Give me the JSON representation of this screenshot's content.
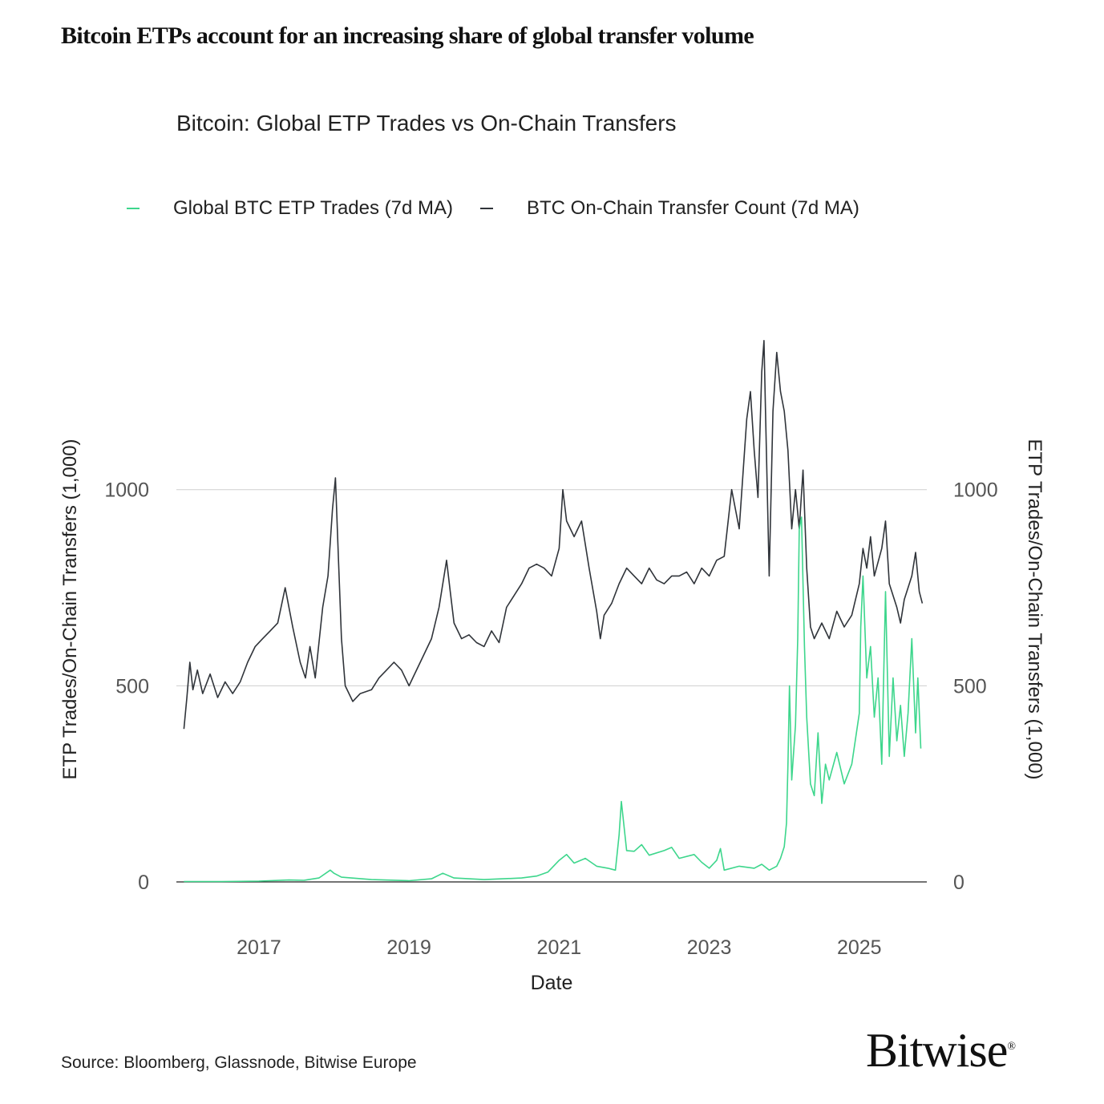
{
  "headline": "Bitcoin ETPs account for an increasing share of global transfer volume",
  "source": "Source: Bloomberg, Glassnode, Bitwise Europe",
  "logo": {
    "text": "Bitwise",
    "mark": "®"
  },
  "colors": {
    "etp": "#3dd68c",
    "onchain": "#30343a",
    "grid": "#cfcfcf",
    "axis": "#222222"
  },
  "chart_data": {
    "type": "line",
    "title": "Bitcoin: Global ETP Trades vs On-Chain Transfers",
    "xlabel": "Date",
    "ylabel_left": "ETP Trades/On-Chain Transfers (1,000)",
    "ylabel_right": "ETP Trades/On-Chain Transfers (1,000)",
    "ylim": [
      0,
      1400
    ],
    "xlim": [
      2015.9,
      2025.9
    ],
    "yticks": [
      0,
      500,
      1000
    ],
    "xticks": [
      2017,
      2019,
      2021,
      2023,
      2025
    ],
    "xtick_labels": [
      "2017",
      "2019",
      "2021",
      "2023",
      "2025"
    ],
    "grid": "horizontal",
    "legend_position": "top",
    "series": [
      {
        "name": "Global BTC ETP Trades (7d MA)",
        "color": "#3dd68c",
        "points": [
          [
            2016.0,
            1
          ],
          [
            2016.5,
            1
          ],
          [
            2017.0,
            2
          ],
          [
            2017.4,
            5
          ],
          [
            2017.6,
            4
          ],
          [
            2017.8,
            10
          ],
          [
            2017.95,
            30
          ],
          [
            2018.0,
            22
          ],
          [
            2018.1,
            12
          ],
          [
            2018.5,
            6
          ],
          [
            2019.0,
            3
          ],
          [
            2019.3,
            8
          ],
          [
            2019.45,
            22
          ],
          [
            2019.6,
            10
          ],
          [
            2020.0,
            6
          ],
          [
            2020.5,
            10
          ],
          [
            2020.7,
            15
          ],
          [
            2020.85,
            25
          ],
          [
            2021.0,
            55
          ],
          [
            2021.1,
            70
          ],
          [
            2021.2,
            48
          ],
          [
            2021.35,
            60
          ],
          [
            2021.5,
            40
          ],
          [
            2021.65,
            35
          ],
          [
            2021.75,
            30
          ],
          [
            2021.8,
            120
          ],
          [
            2021.83,
            205
          ],
          [
            2021.9,
            80
          ],
          [
            2022.0,
            78
          ],
          [
            2022.1,
            95
          ],
          [
            2022.2,
            68
          ],
          [
            2022.4,
            80
          ],
          [
            2022.5,
            88
          ],
          [
            2022.6,
            60
          ],
          [
            2022.8,
            70
          ],
          [
            2022.9,
            50
          ],
          [
            2023.0,
            35
          ],
          [
            2023.1,
            55
          ],
          [
            2023.15,
            85
          ],
          [
            2023.2,
            30
          ],
          [
            2023.4,
            40
          ],
          [
            2023.6,
            35
          ],
          [
            2023.7,
            45
          ],
          [
            2023.8,
            30
          ],
          [
            2023.9,
            40
          ],
          [
            2023.95,
            60
          ],
          [
            2024.0,
            90
          ],
          [
            2024.03,
            150
          ],
          [
            2024.05,
            300
          ],
          [
            2024.07,
            500
          ],
          [
            2024.1,
            260
          ],
          [
            2024.15,
            400
          ],
          [
            2024.18,
            620
          ],
          [
            2024.2,
            900
          ],
          [
            2024.23,
            930
          ],
          [
            2024.27,
            600
          ],
          [
            2024.3,
            420
          ],
          [
            2024.35,
            250
          ],
          [
            2024.4,
            220
          ],
          [
            2024.45,
            380
          ],
          [
            2024.5,
            200
          ],
          [
            2024.55,
            300
          ],
          [
            2024.6,
            260
          ],
          [
            2024.7,
            330
          ],
          [
            2024.8,
            250
          ],
          [
            2024.9,
            300
          ],
          [
            2025.0,
            430
          ],
          [
            2025.02,
            650
          ],
          [
            2025.05,
            780
          ],
          [
            2025.1,
            520
          ],
          [
            2025.15,
            600
          ],
          [
            2025.2,
            420
          ],
          [
            2025.25,
            520
          ],
          [
            2025.3,
            300
          ],
          [
            2025.35,
            740
          ],
          [
            2025.4,
            320
          ],
          [
            2025.45,
            520
          ],
          [
            2025.5,
            360
          ],
          [
            2025.55,
            450
          ],
          [
            2025.6,
            320
          ],
          [
            2025.65,
            430
          ],
          [
            2025.7,
            620
          ],
          [
            2025.75,
            380
          ],
          [
            2025.78,
            520
          ],
          [
            2025.82,
            340
          ]
        ]
      },
      {
        "name": "BTC On-Chain Transfer Count (7d MA)",
        "color": "#30343a",
        "points": [
          [
            2016.0,
            390
          ],
          [
            2016.04,
            470
          ],
          [
            2016.08,
            560
          ],
          [
            2016.12,
            490
          ],
          [
            2016.18,
            540
          ],
          [
            2016.25,
            480
          ],
          [
            2016.35,
            530
          ],
          [
            2016.45,
            470
          ],
          [
            2016.55,
            510
          ],
          [
            2016.65,
            480
          ],
          [
            2016.75,
            510
          ],
          [
            2016.85,
            560
          ],
          [
            2016.95,
            600
          ],
          [
            2017.05,
            620
          ],
          [
            2017.15,
            640
          ],
          [
            2017.25,
            660
          ],
          [
            2017.35,
            750
          ],
          [
            2017.45,
            650
          ],
          [
            2017.55,
            560
          ],
          [
            2017.62,
            520
          ],
          [
            2017.68,
            600
          ],
          [
            2017.75,
            520
          ],
          [
            2017.85,
            700
          ],
          [
            2017.92,
            780
          ],
          [
            2017.98,
            950
          ],
          [
            2018.02,
            1030
          ],
          [
            2018.06,
            820
          ],
          [
            2018.1,
            620
          ],
          [
            2018.15,
            500
          ],
          [
            2018.25,
            460
          ],
          [
            2018.35,
            480
          ],
          [
            2018.5,
            490
          ],
          [
            2018.6,
            520
          ],
          [
            2018.7,
            540
          ],
          [
            2018.8,
            560
          ],
          [
            2018.9,
            540
          ],
          [
            2019.0,
            500
          ],
          [
            2019.05,
            520
          ],
          [
            2019.15,
            560
          ],
          [
            2019.3,
            620
          ],
          [
            2019.4,
            700
          ],
          [
            2019.5,
            820
          ],
          [
            2019.55,
            740
          ],
          [
            2019.6,
            660
          ],
          [
            2019.7,
            620
          ],
          [
            2019.8,
            630
          ],
          [
            2019.9,
            610
          ],
          [
            2020.0,
            600
          ],
          [
            2020.1,
            640
          ],
          [
            2020.2,
            610
          ],
          [
            2020.3,
            700
          ],
          [
            2020.4,
            730
          ],
          [
            2020.5,
            760
          ],
          [
            2020.6,
            800
          ],
          [
            2020.7,
            810
          ],
          [
            2020.8,
            800
          ],
          [
            2020.9,
            780
          ],
          [
            2021.0,
            850
          ],
          [
            2021.05,
            1000
          ],
          [
            2021.1,
            920
          ],
          [
            2021.2,
            880
          ],
          [
            2021.3,
            920
          ],
          [
            2021.4,
            800
          ],
          [
            2021.5,
            690
          ],
          [
            2021.55,
            620
          ],
          [
            2021.6,
            680
          ],
          [
            2021.7,
            710
          ],
          [
            2021.8,
            760
          ],
          [
            2021.9,
            800
          ],
          [
            2022.0,
            780
          ],
          [
            2022.1,
            760
          ],
          [
            2022.2,
            800
          ],
          [
            2022.3,
            770
          ],
          [
            2022.4,
            760
          ],
          [
            2022.5,
            780
          ],
          [
            2022.6,
            780
          ],
          [
            2022.7,
            790
          ],
          [
            2022.8,
            760
          ],
          [
            2022.9,
            800
          ],
          [
            2023.0,
            780
          ],
          [
            2023.1,
            820
          ],
          [
            2023.2,
            830
          ],
          [
            2023.3,
            1000
          ],
          [
            2023.4,
            900
          ],
          [
            2023.5,
            1180
          ],
          [
            2023.55,
            1250
          ],
          [
            2023.6,
            1100
          ],
          [
            2023.65,
            980
          ],
          [
            2023.7,
            1300
          ],
          [
            2023.73,
            1380
          ],
          [
            2023.75,
            1200
          ],
          [
            2023.8,
            780
          ],
          [
            2023.85,
            1200
          ],
          [
            2023.9,
            1350
          ],
          [
            2023.95,
            1250
          ],
          [
            2024.0,
            1200
          ],
          [
            2024.05,
            1100
          ],
          [
            2024.1,
            900
          ],
          [
            2024.15,
            1000
          ],
          [
            2024.2,
            900
          ],
          [
            2024.25,
            1050
          ],
          [
            2024.3,
            800
          ],
          [
            2024.35,
            650
          ],
          [
            2024.4,
            620
          ],
          [
            2024.5,
            660
          ],
          [
            2024.6,
            620
          ],
          [
            2024.7,
            690
          ],
          [
            2024.8,
            650
          ],
          [
            2024.9,
            680
          ],
          [
            2025.0,
            760
          ],
          [
            2025.05,
            850
          ],
          [
            2025.1,
            800
          ],
          [
            2025.15,
            880
          ],
          [
            2025.2,
            780
          ],
          [
            2025.3,
            850
          ],
          [
            2025.35,
            920
          ],
          [
            2025.4,
            760
          ],
          [
            2025.5,
            700
          ],
          [
            2025.55,
            660
          ],
          [
            2025.6,
            720
          ],
          [
            2025.7,
            780
          ],
          [
            2025.75,
            840
          ],
          [
            2025.8,
            740
          ],
          [
            2025.84,
            710
          ]
        ]
      }
    ]
  }
}
